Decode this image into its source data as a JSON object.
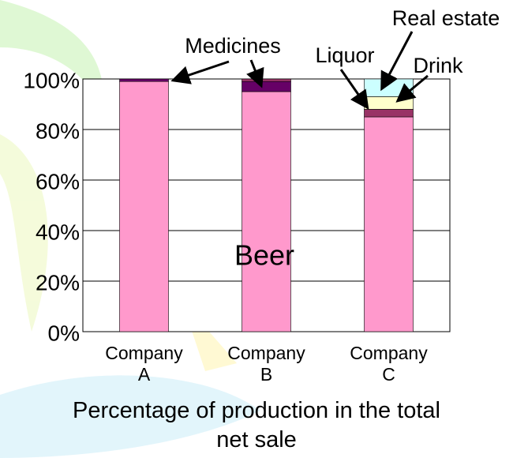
{
  "chart_data": {
    "type": "stacked_bar",
    "categories": [
      "Company A",
      "Company B",
      "Company C"
    ],
    "series": [
      {
        "name": "Beer",
        "color": "#ff99cc",
        "values": [
          99,
          95,
          85
        ]
      },
      {
        "name": "Medicines",
        "color": "#660066",
        "values": [
          1,
          4,
          0
        ]
      },
      {
        "name": "Liquor",
        "color": "#993366",
        "values": [
          0,
          1,
          3
        ]
      },
      {
        "name": "Drink",
        "color": "#ffffcc",
        "values": [
          0,
          0,
          5
        ]
      },
      {
        "name": "Real estate",
        "color": "#ccffff",
        "values": [
          0,
          0,
          7
        ]
      }
    ],
    "ylim": [
      0,
      100
    ],
    "yticks": [
      {
        "value": 0,
        "label": "0%"
      },
      {
        "value": 20,
        "label": "20%"
      },
      {
        "value": 40,
        "label": "40%"
      },
      {
        "value": 60,
        "label": "60%"
      },
      {
        "value": 80,
        "label": "80%"
      },
      {
        "value": 100,
        "label": "100%"
      }
    ],
    "grid": true,
    "xlabel": "Percentage of production in the total net sale"
  }
}
